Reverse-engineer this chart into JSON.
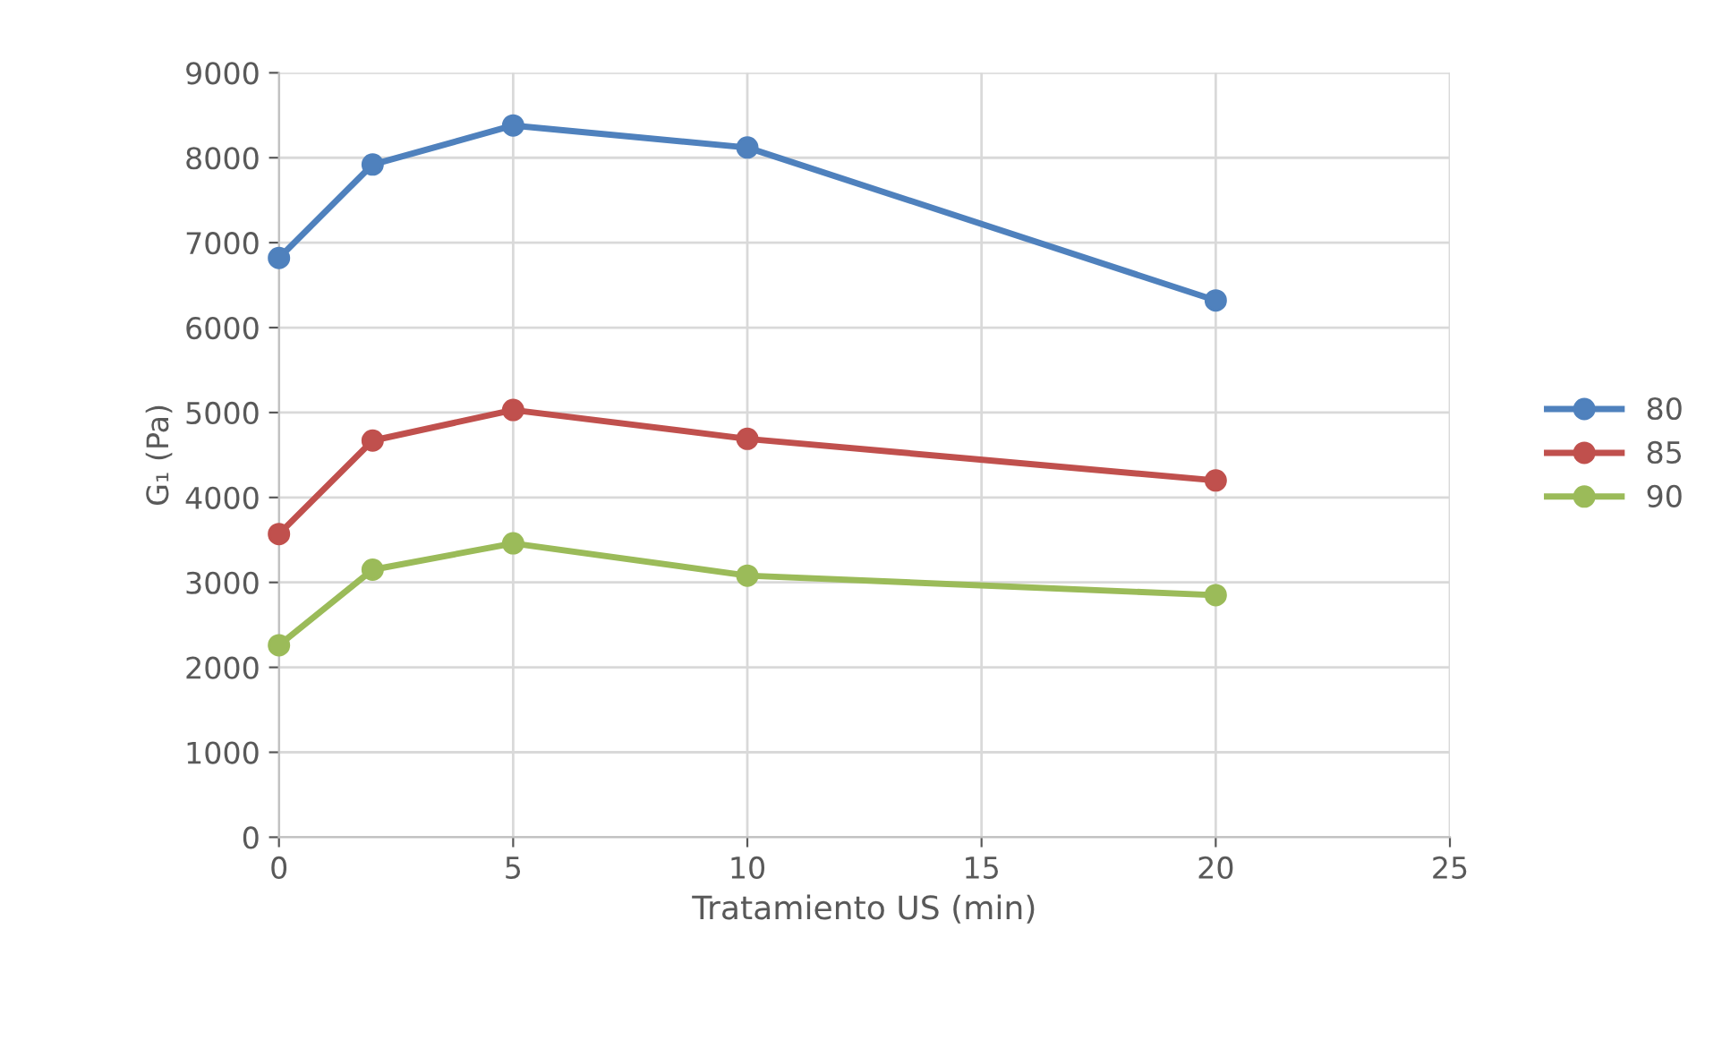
{
  "chart_data": {
    "type": "line",
    "xlabel": "Tratamiento US (min)",
    "ylabel": "G₁ (Pa)",
    "x": [
      0,
      2,
      5,
      10,
      20
    ],
    "series": [
      {
        "name": "80",
        "color": "#4f81bd",
        "values": [
          6820,
          7920,
          8380,
          8120,
          6320
        ]
      },
      {
        "name": "85",
        "color": "#c0504d",
        "values": [
          3570,
          4670,
          5030,
          4690,
          4200
        ]
      },
      {
        "name": "90",
        "color": "#9bbb59",
        "values": [
          2260,
          3150,
          3460,
          3080,
          2850
        ]
      }
    ],
    "xlim": [
      0,
      25
    ],
    "xticks": [
      0,
      5,
      10,
      15,
      20,
      25
    ],
    "ylim": [
      0,
      9000
    ],
    "yticks": [
      0,
      1000,
      2000,
      3000,
      4000,
      5000,
      6000,
      7000,
      8000,
      9000
    ],
    "grid": true,
    "legend": "right",
    "marker": "circle",
    "line_style": "solid"
  }
}
